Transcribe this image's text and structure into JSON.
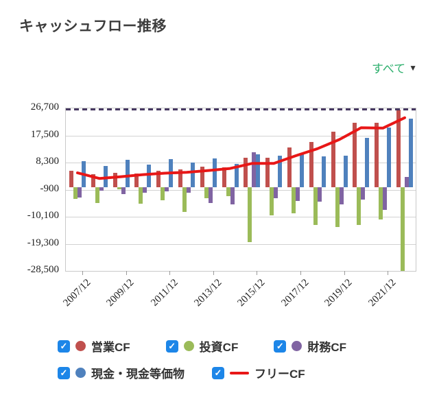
{
  "header": {
    "title": "キャッシュフロー推移"
  },
  "filter": {
    "label": "すべて",
    "caret": "▼"
  },
  "chart_data": {
    "type": "bar",
    "title": "キャッシュフロー推移",
    "categories": [
      "2007/12",
      "2008/12",
      "2009/12",
      "2010/12",
      "2011/12",
      "2012/12",
      "2013/12",
      "2014/12",
      "2015/12",
      "2016/12",
      "2017/12",
      "2018/12",
      "2019/12",
      "2020/12",
      "2021/12",
      "2022/12"
    ],
    "series": [
      {
        "name": "営業CF",
        "key": "operating-cf",
        "type": "bar",
        "color": "#c0504d",
        "values": [
          5600,
          4300,
          4800,
          4600,
          5600,
          6000,
          7000,
          6700,
          9900,
          10000,
          13400,
          15300,
          18800,
          21900,
          21800,
          26200
        ]
      },
      {
        "name": "投資CF",
        "key": "investing-cf",
        "type": "bar",
        "color": "#9bbb59",
        "values": [
          -4000,
          -5400,
          -700,
          -5700,
          -4500,
          -8500,
          -3700,
          -3100,
          -18700,
          -9700,
          -8900,
          -12800,
          -13600,
          -12800,
          -11000,
          -28500
        ]
      },
      {
        "name": "財務CF",
        "key": "financing-cf",
        "type": "bar",
        "color": "#8064a2",
        "values": [
          -3500,
          -1200,
          -2500,
          -2000,
          -1600,
          -1900,
          -5400,
          -6000,
          11900,
          -3900,
          -4700,
          -5000,
          -5800,
          -4300,
          -7800,
          3300
        ]
      },
      {
        "name": "現金・現金等価物",
        "key": "cash-equivalents",
        "type": "bar",
        "color": "#4f81bd",
        "values": [
          8700,
          7200,
          9300,
          7700,
          9500,
          8300,
          9600,
          7900,
          11000,
          10600,
          11600,
          10500,
          10700,
          16700,
          20200,
          23200
        ]
      },
      {
        "name": "フリーCF",
        "key": "free-cf",
        "type": "line",
        "color": "#e81717",
        "values": [
          4800,
          2900,
          3500,
          4200,
          4700,
          5000,
          5600,
          6300,
          8000,
          8000,
          10600,
          13000,
          16100,
          20100,
          20000,
          23500
        ]
      }
    ],
    "ylim": [
      -28500,
      26700
    ],
    "y_ticks": [
      26700,
      17500,
      8300,
      -900,
      -10100,
      -19300,
      -28500
    ],
    "y_tick_labels": [
      "26,700",
      "17,500",
      "8,300",
      "-900",
      "-10,100",
      "-19,300",
      "-28,500"
    ],
    "x_tick_labels": [
      "2007/12",
      "2009/12",
      "2011/12",
      "2013/12",
      "2015/12",
      "2017/12",
      "2019/12",
      "2021/12"
    ],
    "grid": true,
    "zero_line": {
      "style": "dashed",
      "color": "#473861"
    },
    "legend_position": "bottom"
  },
  "legend": {
    "checkbox_color": "#1d86e8",
    "check_glyph": "✓",
    "rows": [
      [
        {
          "label": "営業CF",
          "marker": "circle",
          "color": "#c0504d",
          "checked": true
        },
        {
          "label": "投資CF",
          "marker": "circle",
          "color": "#9bbb59",
          "checked": true
        },
        {
          "label": "財務CF",
          "marker": "circle",
          "color": "#8064a2",
          "checked": true
        }
      ],
      [
        {
          "label": "現金・現金等価物",
          "marker": "circle",
          "color": "#4f81bd",
          "checked": true
        },
        {
          "label": "フリーCF",
          "marker": "line",
          "color": "#e81717",
          "checked": true
        }
      ]
    ]
  }
}
